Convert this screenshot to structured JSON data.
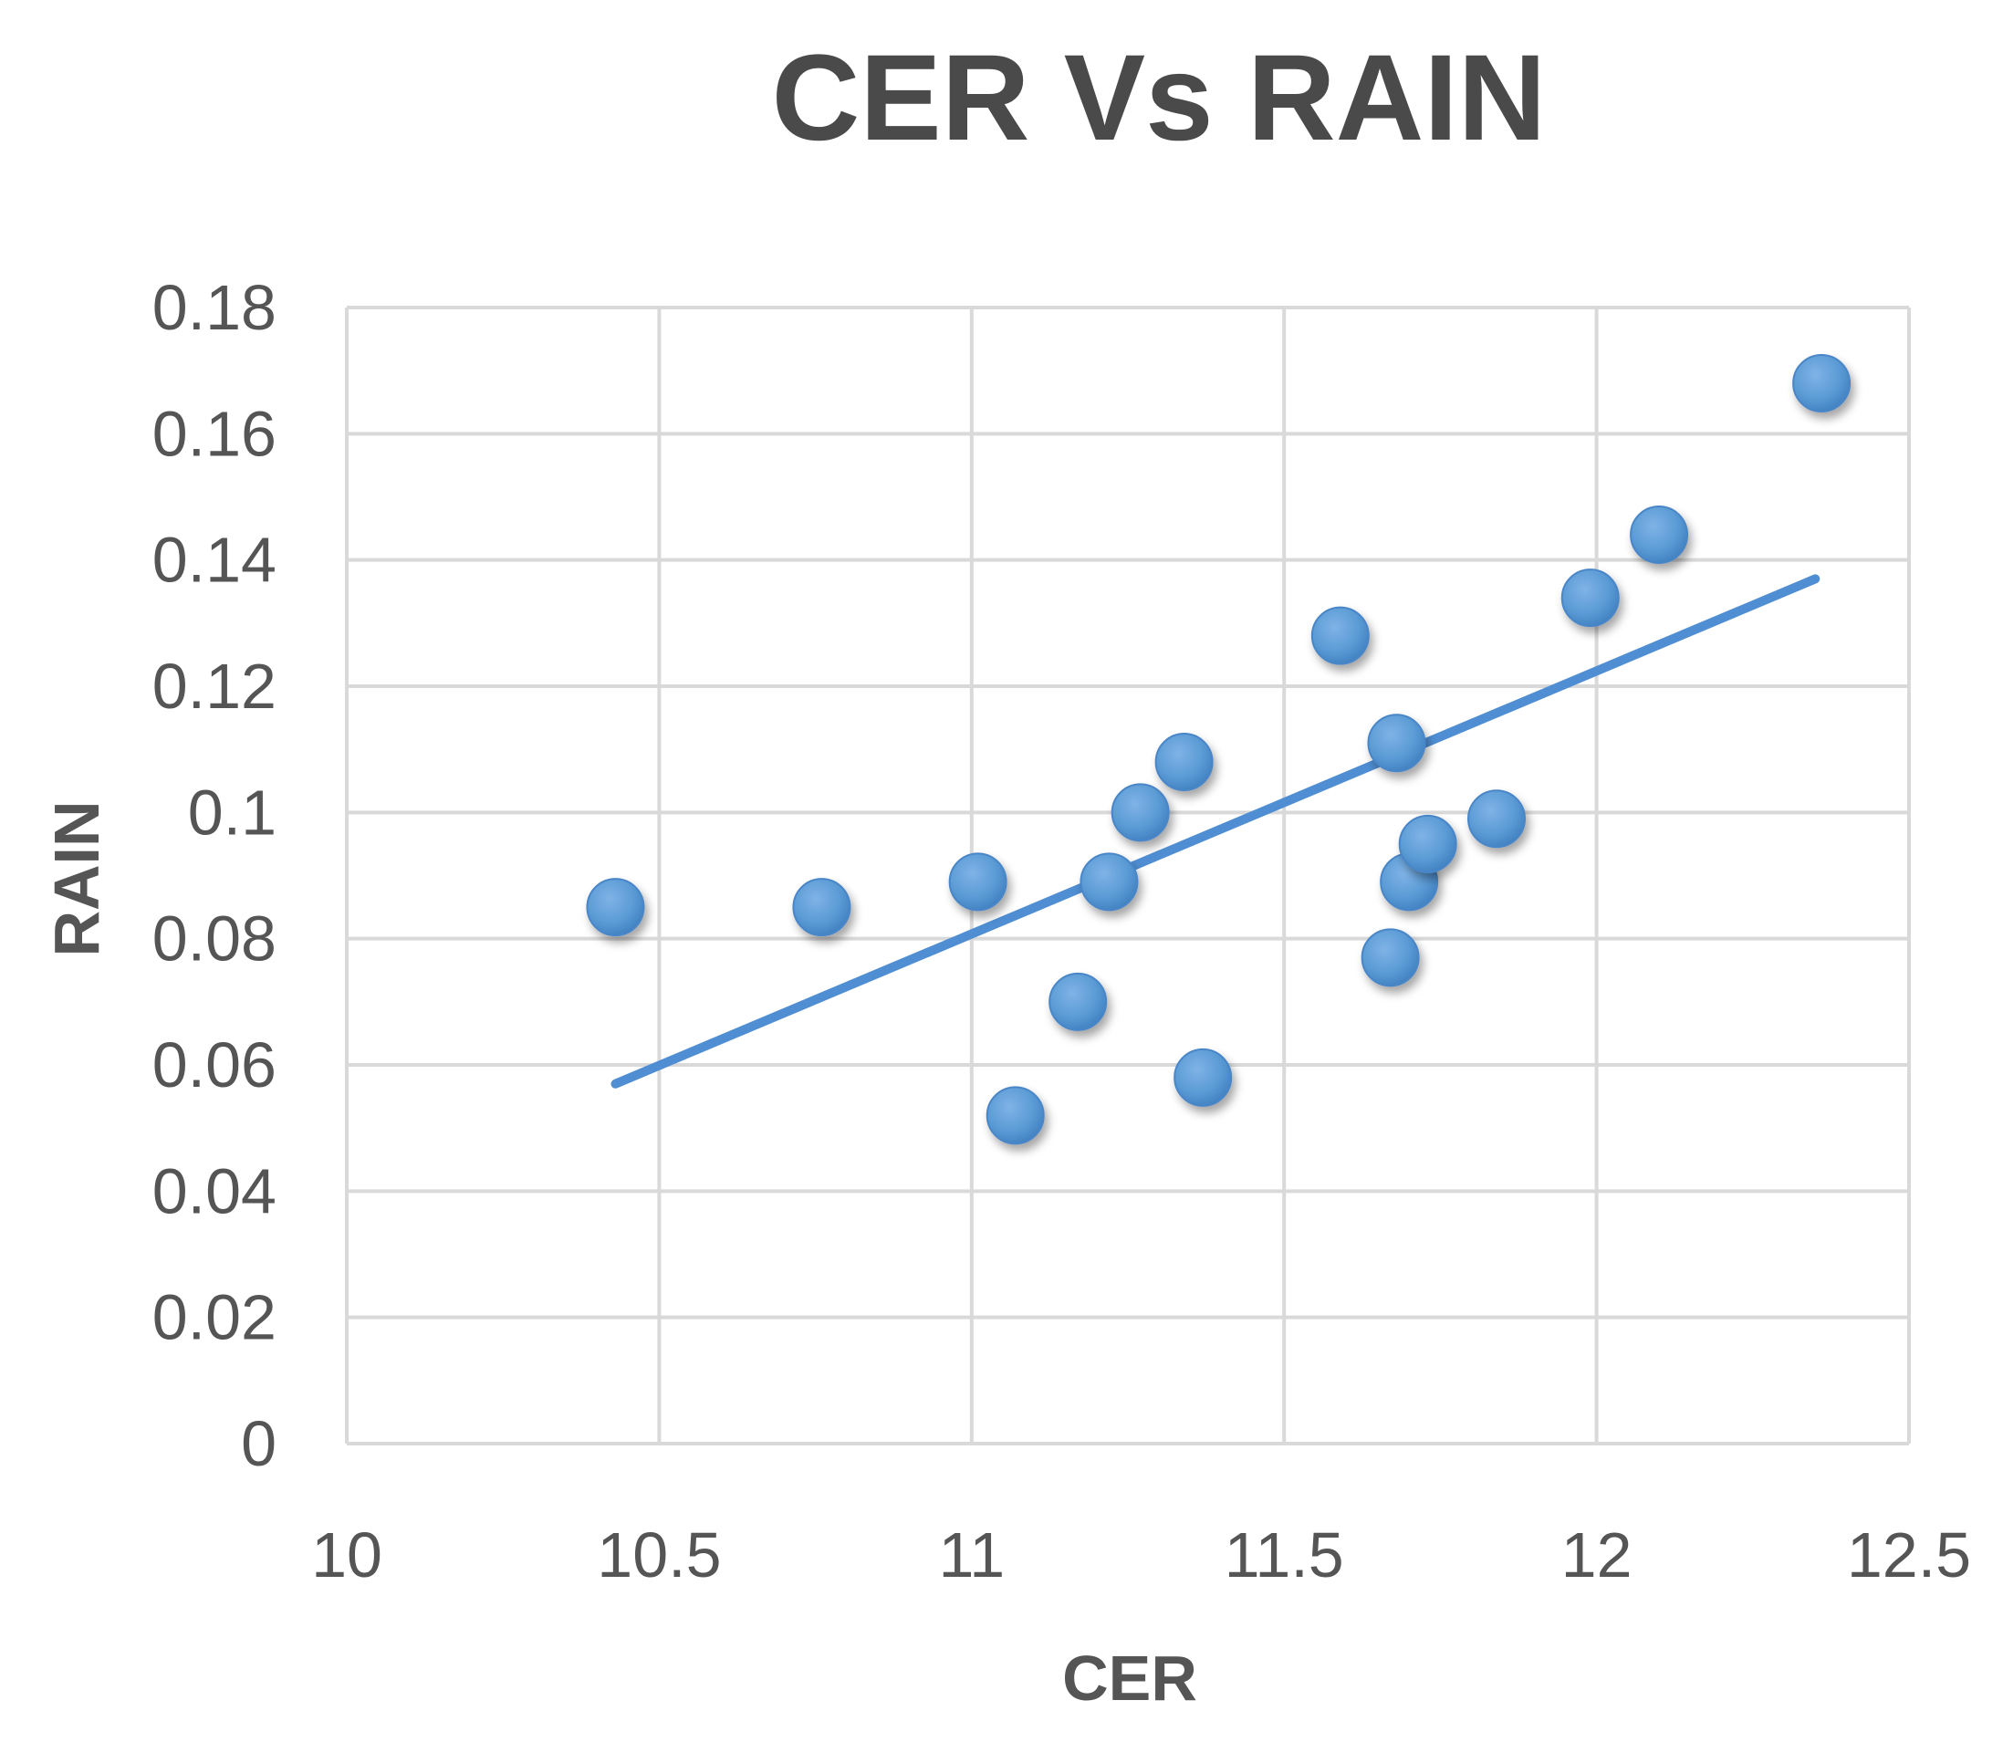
{
  "chart_data": {
    "type": "scatter",
    "title": "CER Vs RAIN",
    "xlabel": "CER",
    "ylabel": "RAIN",
    "xlim": [
      10,
      12.5
    ],
    "ylim": [
      0,
      0.18
    ],
    "xticks": [
      "10",
      "10.5",
      "11",
      "11.5",
      "12",
      "12.5"
    ],
    "yticks": [
      "0",
      "0.02",
      "0.04",
      "0.06",
      "0.08",
      "0.1",
      "0.12",
      "0.14",
      "0.16",
      "0.18"
    ],
    "grid": true,
    "series": [
      {
        "name": "RAIN",
        "color": "#5b9bd5",
        "points": [
          {
            "x": 10.43,
            "y": 0.085
          },
          {
            "x": 10.76,
            "y": 0.085
          },
          {
            "x": 11.01,
            "y": 0.089
          },
          {
            "x": 11.07,
            "y": 0.052
          },
          {
            "x": 11.17,
            "y": 0.07
          },
          {
            "x": 11.22,
            "y": 0.089
          },
          {
            "x": 11.27,
            "y": 0.1
          },
          {
            "x": 11.34,
            "y": 0.108
          },
          {
            "x": 11.37,
            "y": 0.058
          },
          {
            "x": 11.59,
            "y": 0.128
          },
          {
            "x": 11.67,
            "y": 0.077
          },
          {
            "x": 11.68,
            "y": 0.111
          },
          {
            "x": 11.7,
            "y": 0.089
          },
          {
            "x": 11.73,
            "y": 0.095
          },
          {
            "x": 11.84,
            "y": 0.099
          },
          {
            "x": 11.99,
            "y": 0.134
          },
          {
            "x": 12.1,
            "y": 0.144
          },
          {
            "x": 12.36,
            "y": 0.168
          }
        ]
      }
    ],
    "trendline": {
      "type": "linear",
      "color": "#4f8ed3",
      "x": [
        10.43,
        12.35
      ],
      "y": [
        0.057,
        0.137
      ]
    }
  }
}
